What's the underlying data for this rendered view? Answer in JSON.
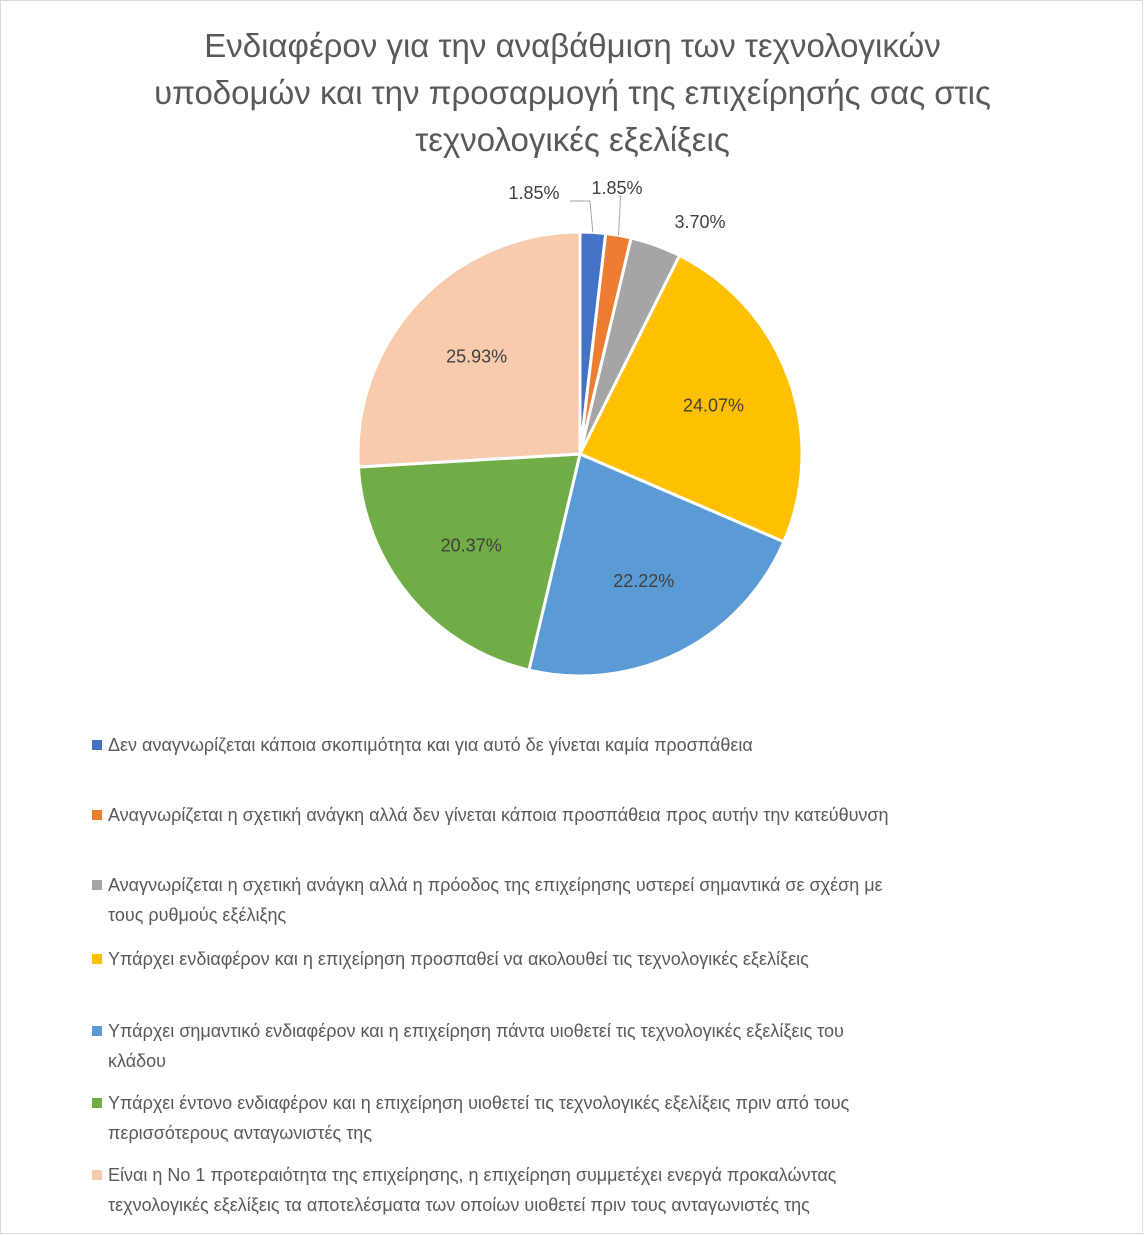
{
  "title_lines": [
    "Ενδιαφέρον για την αναβάθμιση των τεχνολογικών",
    "υποδομών και την προσαρμογή της επιχείρησής σας στις",
    "τεχνολογικές εξελίξεις"
  ],
  "chart_data": {
    "type": "pie",
    "title": "Ενδιαφέρον για την αναβάθμιση των τεχνολογικών υποδομών και την προσαρμογή της επιχείρησής σας στις τεχνολογικές εξελίξεις",
    "legend_position": "bottom",
    "categories": [
      "Δεν αναγνωρίζεται κάποια σκοπιμότητα και για αυτό δε γίνεται καμία προσπάθεια",
      "Αναγνωρίζεται η σχετική ανάγκη αλλά δεν γίνεται κάποια προσπάθεια προς αυτήν την κατεύθυνση",
      "Αναγνωρίζεται η σχετική ανάγκη αλλά η πρόοδος της επιχείρησης υστερεί σημαντικά σε σχέση με τους ρυθμούς εξέλιξης",
      "Υπάρχει ενδιαφέρον και η επιχείρηση προσπαθεί να ακολουθεί τις τεχνολογικές εξελίξεις",
      "Υπάρχει σημαντικό ενδιαφέρον και η επιχείρηση πάντα υιοθετεί τις τεχνολογικές εξελίξεις του κλάδου",
      "Υπάρχει έντονο ενδιαφέρον και η επιχείρηση υιοθετεί τις τεχνολογικές εξελίξεις πριν από τους περισσότερους ανταγωνιστές της",
      "Είναι η No 1 προτεραιότητα της επιχείρησης, η επιχείρηση συμμετέχει ενεργά προκαλώντας τεχνολογικές εξελίξεις τα αποτελέσματα των οποίων υιοθετεί πριν τους ανταγωνιστές της"
    ],
    "values": [
      1.85,
      1.85,
      3.7,
      24.07,
      22.22,
      20.37,
      25.93
    ],
    "labels": [
      "1.85%",
      "1.85%",
      "3.70%",
      "24.07%",
      "22.22%",
      "20.37%",
      "25.93%"
    ],
    "colors": [
      "#4472c4",
      "#ed7d31",
      "#a5a5a5",
      "#ffc000",
      "#5b9bd5",
      "#70ad47",
      "#f8cbad"
    ]
  },
  "legend": [
    {
      "lines": [
        "Δεν αναγνωρίζεται κάποια σκοπιμότητα και για αυτό δε γίνεται καμία προσπάθεια"
      ]
    },
    {
      "lines": [
        "Αναγνωρίζεται η σχετική ανάγκη αλλά δεν γίνεται κάποια προσπάθεια προς αυτήν την κατεύθυνση"
      ]
    },
    {
      "lines": [
        "Αναγνωρίζεται η σχετική ανάγκη αλλά η πρόοδος της επιχείρησης υστερεί σημαντικά σε σχέση με",
        "τους ρυθμούς εξέλιξης"
      ]
    },
    {
      "lines": [
        "Υπάρχει ενδιαφέρον και η επιχείρηση προσπαθεί να ακολουθεί τις τεχνολογικές εξελίξεις"
      ]
    },
    {
      "lines": [
        "Υπάρχει σημαντικό ενδιαφέρον και η επιχείρηση πάντα υιοθετεί τις τεχνολογικές εξελίξεις του",
        "κλάδου"
      ]
    },
    {
      "lines": [
        "Υπάρχει έντονο ενδιαφέρον και η επιχείρηση υιοθετεί τις τεχνολογικές εξελίξεις πριν από τους",
        "περισσότερους ανταγωνιστές της"
      ]
    },
    {
      "lines": [
        "Είναι η No 1 προτεραιότητα της επιχείρησης, η επιχείρηση συμμετέχει ενεργά προκαλώντας",
        "τεχνολογικές εξελίξεις τα αποτελέσματα των οποίων υιοθετεί πριν τους ανταγωνιστές της"
      ]
    }
  ]
}
